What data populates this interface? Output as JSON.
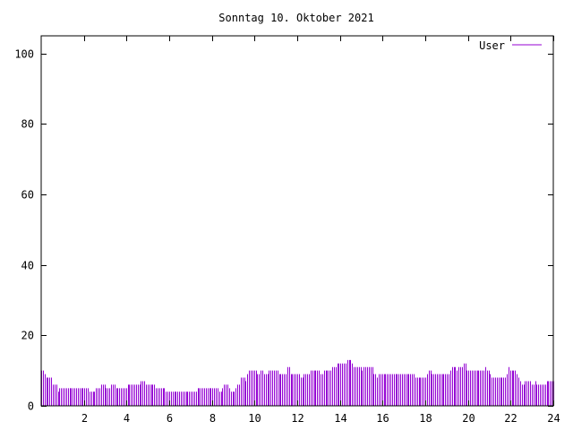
{
  "chart_data": {
    "type": "bar",
    "title": "Sonntag 10. Oktober 2021",
    "xlabel": "",
    "ylabel": "",
    "xlim": [
      0,
      24
    ],
    "ylim": [
      0,
      105
    ],
    "xticks": [
      2,
      4,
      6,
      8,
      10,
      12,
      14,
      16,
      18,
      20,
      22,
      24
    ],
    "yticks": [
      0,
      20,
      40,
      60,
      80,
      100
    ],
    "legend": {
      "label": "User",
      "placement": "top-right"
    },
    "grid": false,
    "colors": {
      "series": "#9400d3",
      "axis": "#000000",
      "background": "#ffffff"
    },
    "series": [
      {
        "name": "User",
        "sample_interval_hours": 0.0833,
        "values": [
          10,
          10,
          9,
          8,
          8,
          8,
          8,
          6,
          6,
          6,
          4,
          5,
          5,
          5,
          5,
          5,
          5,
          5,
          5,
          5,
          5,
          5,
          5,
          5,
          5,
          5,
          5,
          5,
          5,
          4,
          4,
          4,
          4,
          5,
          5,
          5,
          6,
          6,
          6,
          5,
          5,
          5,
          6,
          6,
          6,
          5,
          5,
          5,
          5,
          5,
          5,
          5,
          6,
          6,
          6,
          6,
          6,
          6,
          6,
          6,
          7,
          7,
          7,
          6,
          6,
          6,
          6,
          6,
          6,
          5,
          5,
          5,
          5,
          5,
          5,
          4,
          4,
          4,
          4,
          4,
          4,
          4,
          4,
          4,
          4,
          4,
          4,
          4,
          4,
          4,
          4,
          4,
          4,
          4,
          5,
          5,
          5,
          5,
          5,
          5,
          5,
          5,
          5,
          5,
          5,
          5,
          5,
          4,
          4,
          5,
          6,
          6,
          6,
          5,
          4,
          4,
          4,
          5,
          6,
          6,
          8,
          8,
          8,
          7,
          9,
          10,
          10,
          10,
          10,
          10,
          9,
          9,
          10,
          10,
          9,
          9,
          9,
          10,
          10,
          10,
          10,
          10,
          10,
          9,
          9,
          9,
          9,
          9,
          11,
          11,
          9,
          9,
          9,
          9,
          9,
          9,
          8,
          8,
          9,
          9,
          9,
          9,
          10,
          10,
          10,
          10,
          10,
          10,
          9,
          9,
          10,
          10,
          10,
          10,
          10,
          11,
          11,
          11,
          12,
          12,
          12,
          12,
          12,
          12,
          13,
          13,
          13,
          12,
          11,
          11,
          11,
          11,
          11,
          10,
          11,
          11,
          11,
          11,
          11,
          11,
          9,
          9,
          8,
          9,
          9,
          9,
          9,
          9,
          9,
          9,
          9,
          9,
          9,
          9,
          9,
          9,
          9,
          9,
          9,
          9,
          9,
          9,
          9,
          9,
          9,
          8,
          8,
          8,
          8,
          8,
          8,
          8,
          9,
          10,
          10,
          9,
          9,
          9,
          9,
          9,
          9,
          9,
          9,
          9,
          9,
          9,
          10,
          11,
          11,
          11,
          10,
          11,
          11,
          11,
          12,
          12,
          10,
          10,
          10,
          10,
          10,
          10,
          10,
          10,
          10,
          10,
          10,
          11,
          10,
          10,
          9,
          8,
          8,
          8,
          8,
          8,
          8,
          8,
          8,
          8,
          9,
          11,
          10,
          10,
          10,
          10,
          9,
          8,
          7,
          6,
          6,
          7,
          7,
          7,
          7,
          6,
          6,
          7,
          6,
          6,
          6,
          6,
          6,
          6,
          7,
          7,
          7,
          7,
          7
        ]
      }
    ]
  }
}
